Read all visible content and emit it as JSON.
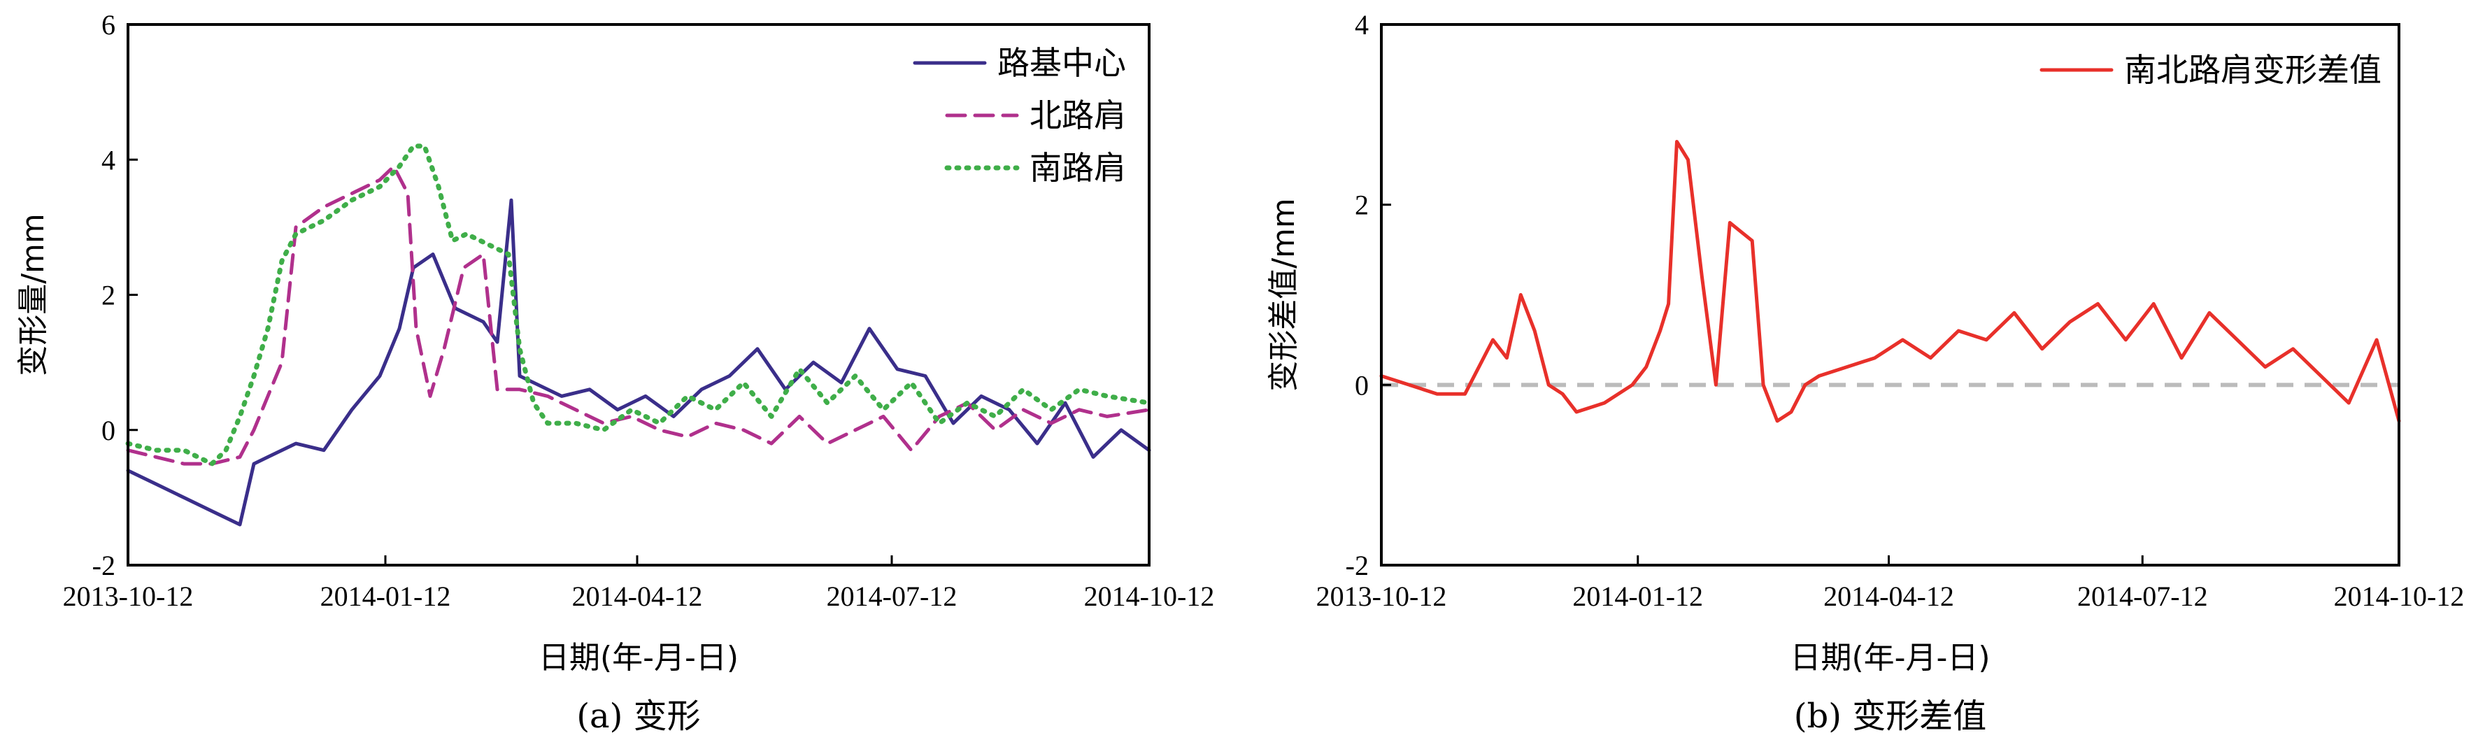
{
  "chart_data": [
    {
      "type": "line",
      "caption": "(a) 变形",
      "xlabel": "日期(年-月-日)",
      "ylabel": "变形量/mm",
      "xlim": [
        "2013-10-12",
        "2014-10-12"
      ],
      "ylim": [
        -2,
        6
      ],
      "x_ticks": [
        "2013-10-12",
        "2014-01-12",
        "2014-04-12",
        "2014-07-12",
        "2014-10-12"
      ],
      "y_ticks": [
        -2,
        0,
        2,
        4,
        6
      ],
      "legend_position": "top-right",
      "grid": false,
      "series": [
        {
          "name": "路基中心",
          "color": "#3a2e8a",
          "dash": "solid",
          "x": [
            "2013-10-12",
            "2013-10-22",
            "2013-11-01",
            "2013-11-11",
            "2013-11-21",
            "2013-11-26",
            "2013-12-01",
            "2013-12-11",
            "2013-12-21",
            "2013-12-31",
            "2014-01-10",
            "2014-01-17",
            "2014-01-22",
            "2014-01-29",
            "2014-02-06",
            "2014-02-16",
            "2014-02-21",
            "2014-02-26",
            "2014-03-01",
            "2014-03-06",
            "2014-03-16",
            "2014-03-26",
            "2014-04-05",
            "2014-04-15",
            "2014-04-25",
            "2014-05-05",
            "2014-05-15",
            "2014-05-25",
            "2014-06-04",
            "2014-06-14",
            "2014-06-24",
            "2014-07-04",
            "2014-07-14",
            "2014-07-24",
            "2014-08-03",
            "2014-08-13",
            "2014-08-23",
            "2014-09-02",
            "2014-09-12",
            "2014-09-22",
            "2014-10-02",
            "2014-10-12"
          ],
          "y": [
            -0.6,
            -0.8,
            -1.0,
            -1.2,
            -1.4,
            -0.5,
            -0.4,
            -0.2,
            -0.3,
            0.3,
            0.8,
            1.5,
            2.4,
            2.6,
            1.8,
            1.6,
            1.3,
            3.4,
            0.8,
            0.7,
            0.5,
            0.6,
            0.3,
            0.5,
            0.2,
            0.6,
            0.8,
            1.2,
            0.6,
            1.0,
            0.7,
            1.5,
            0.9,
            0.8,
            0.1,
            0.5,
            0.3,
            -0.2,
            0.4,
            -0.4,
            0.0,
            -0.3
          ]
        },
        {
          "name": "北路肩",
          "color": "#b0308c",
          "dash": "dashed",
          "x": [
            "2013-10-12",
            "2013-10-22",
            "2013-11-01",
            "2013-11-11",
            "2013-11-21",
            "2013-11-26",
            "2013-12-01",
            "2013-12-06",
            "2013-12-11",
            "2013-12-21",
            "2013-12-31",
            "2014-01-10",
            "2014-01-15",
            "2014-01-20",
            "2014-01-23",
            "2014-01-28",
            "2014-02-02",
            "2014-02-09",
            "2014-02-16",
            "2014-02-21",
            "2014-03-01",
            "2014-03-11",
            "2014-03-21",
            "2014-03-31",
            "2014-04-10",
            "2014-04-20",
            "2014-04-30",
            "2014-05-10",
            "2014-05-20",
            "2014-05-30",
            "2014-06-09",
            "2014-06-19",
            "2014-06-29",
            "2014-07-09",
            "2014-07-19",
            "2014-07-29",
            "2014-08-08",
            "2014-08-18",
            "2014-08-28",
            "2014-09-07",
            "2014-09-17",
            "2014-09-27",
            "2014-10-12"
          ],
          "y": [
            -0.3,
            -0.4,
            -0.5,
            -0.5,
            -0.4,
            0.0,
            0.5,
            1.0,
            3.0,
            3.3,
            3.5,
            3.7,
            3.9,
            3.5,
            1.5,
            0.5,
            1.2,
            2.4,
            2.6,
            0.6,
            0.6,
            0.5,
            0.3,
            0.1,
            0.2,
            0.0,
            -0.1,
            0.1,
            0.0,
            -0.2,
            0.2,
            -0.2,
            0.0,
            0.2,
            -0.3,
            0.2,
            0.4,
            0.0,
            0.3,
            0.1,
            0.3,
            0.2,
            0.3
          ]
        },
        {
          "name": "南路肩",
          "color": "#3fae49",
          "dash": "dotted",
          "x": [
            "2013-10-12",
            "2013-10-22",
            "2013-11-01",
            "2013-11-11",
            "2013-11-16",
            "2013-11-21",
            "2013-11-26",
            "2013-12-01",
            "2013-12-06",
            "2013-12-11",
            "2013-12-21",
            "2013-12-31",
            "2014-01-10",
            "2014-01-17",
            "2014-01-22",
            "2014-01-26",
            "2014-01-31",
            "2014-02-05",
            "2014-02-10",
            "2014-02-15",
            "2014-02-20",
            "2014-02-25",
            "2014-03-01",
            "2014-03-06",
            "2014-03-11",
            "2014-03-21",
            "2014-03-31",
            "2014-04-10",
            "2014-04-20",
            "2014-04-30",
            "2014-05-10",
            "2014-05-20",
            "2014-05-30",
            "2014-06-09",
            "2014-06-19",
            "2014-06-29",
            "2014-07-09",
            "2014-07-19",
            "2014-07-29",
            "2014-08-08",
            "2014-08-18",
            "2014-08-28",
            "2014-09-07",
            "2014-09-17",
            "2014-09-27",
            "2014-10-12"
          ],
          "y": [
            -0.2,
            -0.3,
            -0.3,
            -0.5,
            -0.3,
            0.2,
            0.8,
            1.5,
            2.5,
            2.9,
            3.1,
            3.4,
            3.6,
            3.9,
            4.2,
            4.2,
            3.6,
            2.8,
            2.9,
            2.8,
            2.7,
            2.6,
            1.2,
            0.4,
            0.1,
            0.1,
            0.0,
            0.3,
            0.1,
            0.5,
            0.3,
            0.7,
            0.2,
            0.9,
            0.4,
            0.8,
            0.3,
            0.7,
            0.1,
            0.4,
            0.2,
            0.6,
            0.3,
            0.6,
            0.5,
            0.4
          ]
        }
      ]
    },
    {
      "type": "line",
      "caption": "(b) 变形差值",
      "xlabel": "日期(年-月-日)",
      "ylabel": "变形差值/mm",
      "xlim": [
        "2013-10-12",
        "2014-10-12"
      ],
      "ylim": [
        -2,
        4
      ],
      "x_ticks": [
        "2013-10-12",
        "2014-01-12",
        "2014-04-12",
        "2014-07-12",
        "2014-10-12"
      ],
      "y_ticks": [
        -2,
        0,
        2,
        4
      ],
      "legend_position": "top-right",
      "grid": false,
      "reference_line": {
        "y": 0,
        "color": "#bbbbbb",
        "dash": "dashed"
      },
      "series": [
        {
          "name": "南北路肩变形差值",
          "color": "#e8302a",
          "dash": "solid",
          "x": [
            "2013-10-12",
            "2013-10-22",
            "2013-11-01",
            "2013-11-11",
            "2013-11-21",
            "2013-11-26",
            "2013-12-01",
            "2013-12-06",
            "2013-12-11",
            "2013-12-16",
            "2013-12-21",
            "2013-12-31",
            "2014-01-10",
            "2014-01-15",
            "2014-01-20",
            "2014-01-23",
            "2014-01-26",
            "2014-01-30",
            "2014-02-04",
            "2014-02-09",
            "2014-02-14",
            "2014-02-18",
            "2014-02-22",
            "2014-02-26",
            "2014-03-03",
            "2014-03-08",
            "2014-03-13",
            "2014-03-18",
            "2014-03-28",
            "2014-04-07",
            "2014-04-17",
            "2014-04-27",
            "2014-05-07",
            "2014-05-17",
            "2014-05-27",
            "2014-06-06",
            "2014-06-16",
            "2014-06-26",
            "2014-07-06",
            "2014-07-16",
            "2014-07-26",
            "2014-08-05",
            "2014-08-15",
            "2014-08-25",
            "2014-09-04",
            "2014-09-14",
            "2014-09-24",
            "2014-10-04",
            "2014-10-12"
          ],
          "y": [
            0.1,
            0.0,
            -0.1,
            -0.1,
            0.5,
            0.3,
            1.0,
            0.6,
            0.0,
            -0.1,
            -0.3,
            -0.2,
            0.0,
            0.2,
            0.6,
            0.9,
            2.7,
            2.5,
            1.2,
            0.0,
            1.8,
            1.7,
            1.6,
            0.0,
            -0.4,
            -0.3,
            0.0,
            0.1,
            0.2,
            0.3,
            0.5,
            0.3,
            0.6,
            0.5,
            0.8,
            0.4,
            0.7,
            0.9,
            0.5,
            0.9,
            0.3,
            0.8,
            0.5,
            0.2,
            0.4,
            0.1,
            -0.2,
            0.5,
            -0.4
          ]
        }
      ]
    }
  ]
}
